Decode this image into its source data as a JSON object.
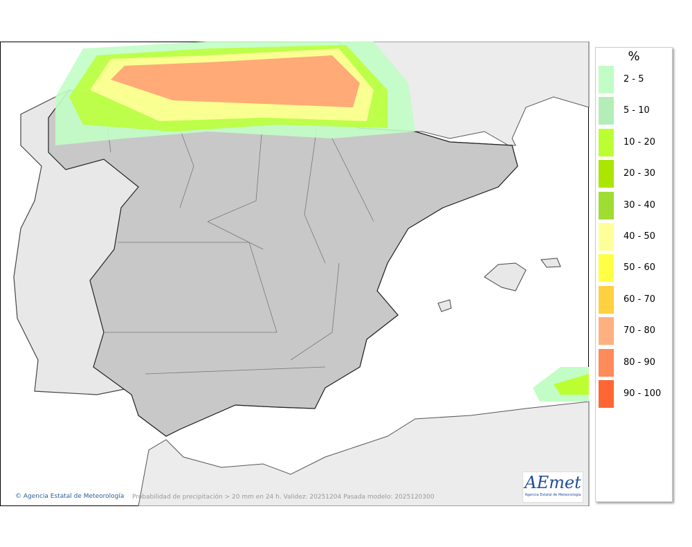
{
  "legend": {
    "title": "%",
    "items": [
      {
        "label": "2 - 5",
        "color": "#c2fdc6"
      },
      {
        "label": "5 - 10",
        "color": "#b3eeb8"
      },
      {
        "label": "10 - 20",
        "color": "#bbff33"
      },
      {
        "label": "20 - 30",
        "color": "#aae600"
      },
      {
        "label": "30 - 40",
        "color": "#a0dd33"
      },
      {
        "label": "40 - 50",
        "color": "#ffff99"
      },
      {
        "label": "50 - 60",
        "color": "#ffff44"
      },
      {
        "label": "60 - 70",
        "color": "#ffd040"
      },
      {
        "label": "70 - 80",
        "color": "#ffb080"
      },
      {
        "label": "80 - 90",
        "color": "#ff8a5a"
      },
      {
        "label": "90 - 100",
        "color": "#ff6633"
      }
    ]
  },
  "footer": {
    "credit": "Agencia Estatal de Meteorología",
    "caption": "Probabilidad de precipitación > 20 mm en 24 h. Validez: 20251204 Pasada modelo: 2025120300"
  },
  "logo": {
    "text": "AEmet",
    "subtext": "Agencia Estatal de Meteorología"
  }
}
